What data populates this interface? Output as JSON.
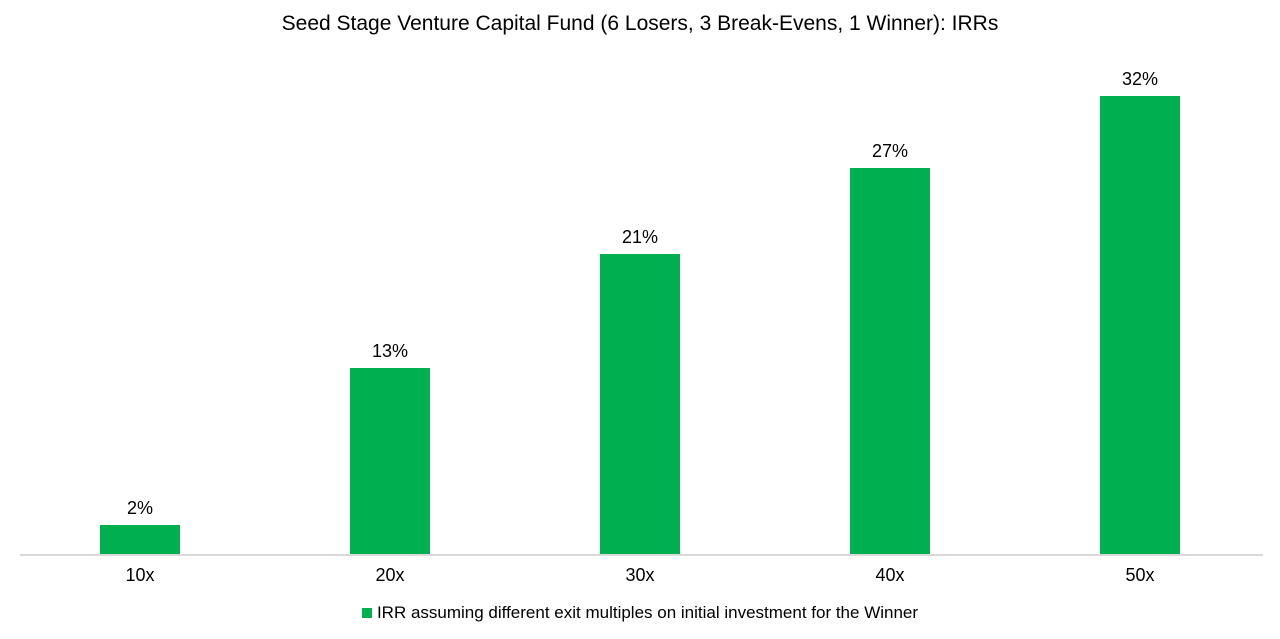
{
  "title": "Seed Stage Venture Capital Fund (6 Losers, 3 Break-Evens, 1 Winner): IRRs",
  "colors": {
    "bar": "#00B050",
    "axis_line": "#D9D9D9",
    "text": "#000000"
  },
  "chart_data": {
    "type": "bar",
    "title": "Seed Stage Venture Capital Fund (6 Losers, 3 Break-Evens, 1 Winner): IRRs",
    "categories": [
      "10x",
      "20x",
      "30x",
      "40x",
      "50x"
    ],
    "values": [
      2,
      13,
      21,
      27,
      32
    ],
    "data_labels": [
      "2%",
      "13%",
      "21%",
      "27%",
      "32%"
    ],
    "xlabel": "",
    "ylabel": "",
    "ylim": [
      0,
      35
    ],
    "grid": false,
    "y_axis_visible": false,
    "legend_position": "bottom",
    "legend_label": "IRR assuming different exit multiples on initial investment for the Winner",
    "bar_color": "#00B050",
    "axis_line_color": "#D9D9D9"
  }
}
